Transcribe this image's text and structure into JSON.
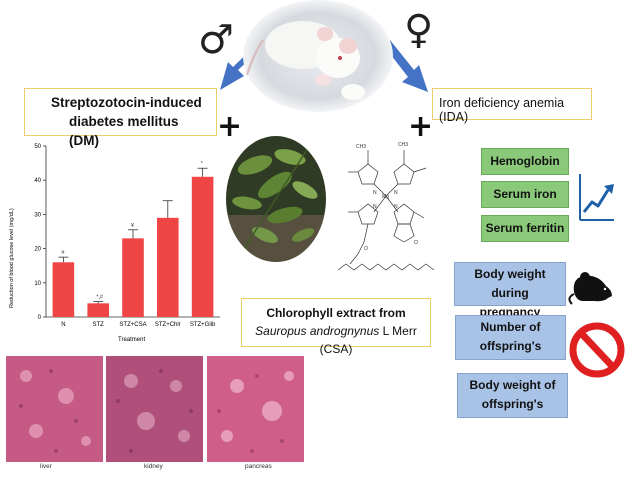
{
  "symbols": {
    "male": "♂",
    "female": "♀",
    "plus": "+"
  },
  "boxes": {
    "dm_line1": "Streptozotocin-induced",
    "dm_line2": "diabetes mellitus (DM)",
    "ida": "Iron deficiency anemia (IDA)",
    "csa_line1": "Chlorophyll extract from",
    "csa_line2_italic": "Sauropus andrognynus",
    "csa_line2_rest": " L Merr (CSA)"
  },
  "increased": [
    "Hemoglobin",
    "Serum iron",
    "Serum ferritin"
  ],
  "decreased": [
    {
      "line1": "Body weight during",
      "line2": "pregnancy"
    },
    {
      "line1": "Number of",
      "line2": "offspring's"
    },
    {
      "line1": "Body weight of",
      "line2": "offspring's"
    }
  ],
  "icons": {
    "up_trend": "trend-up-icon",
    "rat": "rat-icon",
    "prohibit": "prohibited-icon",
    "mouse_photo": "mouse-photo",
    "leaves_photo": "sauropus-leaves-photo",
    "molecule": "chlorophyll-structure"
  },
  "colors": {
    "arrow": "#4472c4",
    "bar": "#f04545",
    "green_box": "#8bc97a",
    "blue_box": "#a9c3e6",
    "prohibit": "#e02020",
    "histology": "#c9567f"
  },
  "histology_labels": [
    "liver",
    "kidney",
    "pancreas"
  ],
  "chart_data": {
    "type": "bar",
    "categories": [
      "N",
      "STZ",
      "STZ+CSA",
      "STZ+Chlr",
      "STZ+Glib"
    ],
    "values": [
      16,
      4,
      23,
      29,
      41
    ],
    "errors": [
      1.5,
      0.5,
      2.5,
      5,
      2.5
    ],
    "annotations": [
      "#",
      "*,#",
      "¥",
      "",
      "*"
    ],
    "xlabel": "Treatment",
    "ylabel": "Reduction of blood glucose level (mg/dL)",
    "yticks": [
      0,
      10,
      20,
      30,
      40,
      50
    ],
    "ylim": [
      0,
      50
    ],
    "grid": false
  }
}
